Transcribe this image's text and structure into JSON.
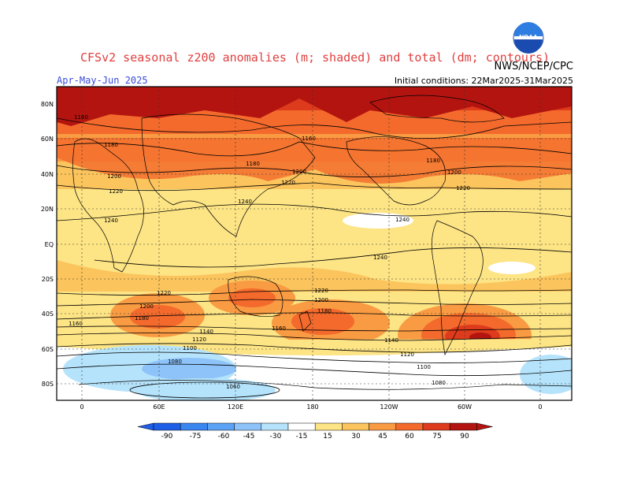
{
  "title": "CFSv2 seasonal z200 anomalies (m; shaded) and total (dm; contours)",
  "organization": "NWS/NCEP/CPC",
  "season": "Apr-May-Jun 2025",
  "initial_conditions": "Initial conditions: 22Mar2025-31Mar2025",
  "logo_text": "NOAA",
  "lat_labels": [
    "80N",
    "60N",
    "40N",
    "20N",
    "EQ",
    "20S",
    "40S",
    "60S",
    "80S"
  ],
  "lon_labels": [
    "0",
    "60E",
    "120E",
    "180",
    "120W",
    "60W",
    "0"
  ],
  "contour_labels": [
    "1160",
    "1180",
    "1200",
    "1220",
    "1240",
    "1180",
    "1200",
    "1220",
    "1240",
    "1160",
    "1180",
    "1200",
    "1220",
    "1240",
    "1240",
    "1220",
    "1200",
    "1180",
    "1160",
    "1140",
    "1120",
    "1100",
    "1080",
    "1060",
    "1140",
    "1120",
    "1100",
    "1080",
    "1160",
    "1180",
    "1200",
    "1220"
  ],
  "colorbar_labels": [
    "-90",
    "-75",
    "-60",
    "-45",
    "-30",
    "-15",
    "15",
    "30",
    "45",
    "60",
    "75",
    "90"
  ],
  "colors": {
    "neg": [
      "#1d5ee6",
      "#3a86f0",
      "#5aa2f5",
      "#8dc3f9",
      "#b5e3fb",
      "#ffffff"
    ],
    "pos": [
      "#fde485",
      "#fbc45d",
      "#f99b42",
      "#f36a2c",
      "#de3b1c",
      "#b31410"
    ]
  }
}
